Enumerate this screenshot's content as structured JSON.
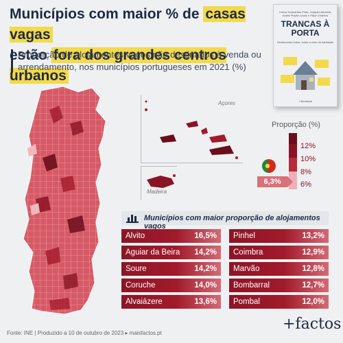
{
  "title": {
    "line1_pre": "Municípios com maior % de ",
    "line1_hl": "casas vagas",
    "line2_pre": "estão ",
    "line2_hl": "fora dos grandes centros urbanos"
  },
  "subtitle": "Proporção de alojamentos vagos não destinados à venda ou arrendamento, nos municípios portugueses em 2021 (%)",
  "book": {
    "authors": "Carlos Guimarães Pinto, Joaquim Almeida, André Pinção Lucas e Filipe Charters",
    "title": "TRANCAS À PORTA",
    "subtitle": "Destravando todas, todas a crise da habitação",
    "publisher": "+ liberdade"
  },
  "regions": {
    "azores": "Açores",
    "madeira": "Madeira"
  },
  "legend": {
    "title": "Proporção (%)",
    "levels": [
      "12%",
      "10%",
      "8%",
      "6%"
    ],
    "colors": [
      "#6b0e1b",
      "#a11a2b",
      "#cf4a57",
      "#eeb0b5"
    ],
    "portugal_value": "6,3%",
    "portugal_icon": "portugal-flag-icon"
  },
  "table": {
    "title": "Municípios com maior proporção de alojamentos vagos",
    "icon": "bar-chart-icon",
    "left": [
      {
        "name": "Alvito",
        "value": "16,5%"
      },
      {
        "name": "Aguiar da Beira",
        "value": "14,2%"
      },
      {
        "name": "Soure",
        "value": "14,2%"
      },
      {
        "name": "Coruche",
        "value": "14,0%"
      },
      {
        "name": "Alvaiázere",
        "value": "13,6%"
      }
    ],
    "right": [
      {
        "name": "Pinhel",
        "value": "13,2%"
      },
      {
        "name": "Coimbra",
        "value": "12,9%"
      },
      {
        "name": "Marvão",
        "value": "12,8%"
      },
      {
        "name": "Bombarral",
        "value": "12,7%"
      },
      {
        "name": "Pombal",
        "value": "12,0%"
      }
    ]
  },
  "footer": {
    "source": "Fonte: INE | Produzido a 10 de outubro de 2023 ▸ maisfactos.pt"
  },
  "brand": "+factos"
}
